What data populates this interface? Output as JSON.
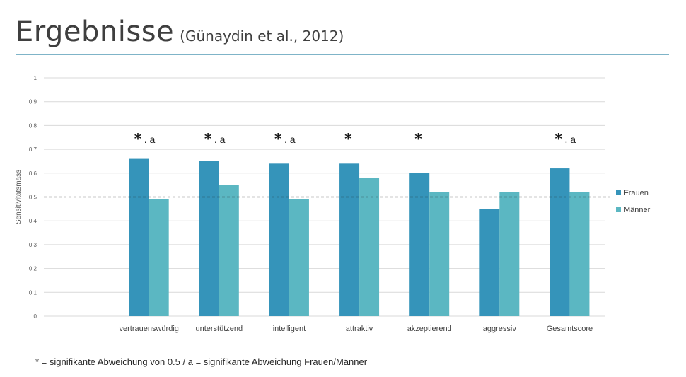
{
  "header": {
    "title": "Ergebnisse",
    "subtitle": "(Günaydin et al., 2012)"
  },
  "footnote": {
    "star": "*",
    "text": " = signifikante Abweichung von 0.5 / a = signifikante Abweichung Frauen/Männer"
  },
  "colors": {
    "frauen": "#3594ba",
    "maenner": "#5bb7c2",
    "grid": "#d9d9d9",
    "rule": "#7fb4c8"
  },
  "chart_data": {
    "type": "bar",
    "title": "",
    "xlabel": "",
    "ylabel": "Sensitivitätsmass",
    "ylim": [
      0,
      1
    ],
    "yticks": [
      "0",
      "0.1",
      "0.2",
      "0.3",
      "0.4",
      "0.5",
      "0.6",
      "0.7",
      "0.8",
      "0.9",
      "1"
    ],
    "categories": [
      "",
      "vertrauenswürdig",
      "unterstützend",
      "intelligent",
      "attraktiv",
      "akzeptierend",
      "aggressiv",
      "Gesamtscore"
    ],
    "series": [
      {
        "name": "Frauen",
        "values": [
          null,
          0.66,
          0.65,
          0.64,
          0.64,
          0.6,
          0.45,
          0.62
        ]
      },
      {
        "name": "Männer",
        "values": [
          null,
          0.49,
          0.55,
          0.49,
          0.58,
          0.52,
          0.52,
          0.52
        ]
      }
    ],
    "annotations": [
      {
        "category": "vertrauenswürdig",
        "star": "*",
        "letter": ". a"
      },
      {
        "category": "unterstützend",
        "star": "*",
        "letter": ". a"
      },
      {
        "category": "intelligent",
        "star": "*",
        "letter": ". a"
      },
      {
        "category": "attraktiv",
        "star": "*",
        "letter": ""
      },
      {
        "category": "akzeptierend",
        "star": "*",
        "letter": ""
      },
      {
        "category": "Gesamtscore",
        "star": "*",
        "letter": ". a"
      }
    ],
    "reference_line": 0.5,
    "grid": true,
    "legend_position": "right"
  }
}
